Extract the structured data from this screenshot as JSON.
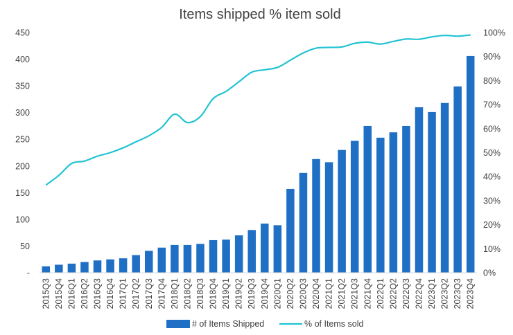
{
  "chart_data": {
    "type": "bar+line",
    "title": "Items shipped % item sold",
    "categories": [
      "2015Q3",
      "2015Q4",
      "2016Q1",
      "2016Q2",
      "2016Q3",
      "2016Q4",
      "2017Q1",
      "2017Q2",
      "2017Q3",
      "2017Q4",
      "2018Q1",
      "2018Q2",
      "2018Q3",
      "2018Q4",
      "2019Q1",
      "2019Q2",
      "2019Q3",
      "2019Q4",
      "2020Q1",
      "2020Q2",
      "2020Q3",
      "2020Q4",
      "2021Q1",
      "2021Q2",
      "2021Q3",
      "2021Q4",
      "2022Q1",
      "2022Q2",
      "2022Q3",
      "2022Q4",
      "2023Q1",
      "2023Q2",
      "2023Q3",
      "2023Q4"
    ],
    "series": [
      {
        "name": "# of Items Shipped",
        "type": "bar",
        "axis": "left",
        "color": "#1f6fc5",
        "values": [
          12,
          15,
          17,
          20,
          23,
          25,
          27,
          33,
          41,
          47,
          52,
          52,
          54,
          61,
          62,
          70,
          80,
          92,
          89,
          157,
          187,
          213,
          207,
          230,
          247,
          275,
          253,
          263,
          275,
          310,
          301,
          318,
          349,
          406
        ]
      },
      {
        "name": "% of Items sold",
        "type": "line",
        "axis": "right",
        "color": "#22c3d3",
        "values": [
          36.5,
          40.5,
          45.5,
          46.5,
          48.5,
          50,
          52,
          54.5,
          57,
          60.5,
          66,
          62.5,
          65,
          72.5,
          75.5,
          79.5,
          83.5,
          84.5,
          85.5,
          88.5,
          91.5,
          93.5,
          93.8,
          94,
          95.5,
          96,
          95.2,
          96.3,
          97.3,
          97.2,
          98.2,
          98.8,
          98.5,
          99
        ]
      }
    ],
    "y_left": {
      "min": 0,
      "max": 450,
      "step": 50,
      "ticks": [
        "-",
        "50",
        "100",
        "150",
        "200",
        "250",
        "300",
        "350",
        "400",
        "450"
      ]
    },
    "y_right": {
      "min": 0,
      "max": 100,
      "step": 10,
      "unit": "%"
    },
    "grid": false,
    "legend": "bottom"
  }
}
